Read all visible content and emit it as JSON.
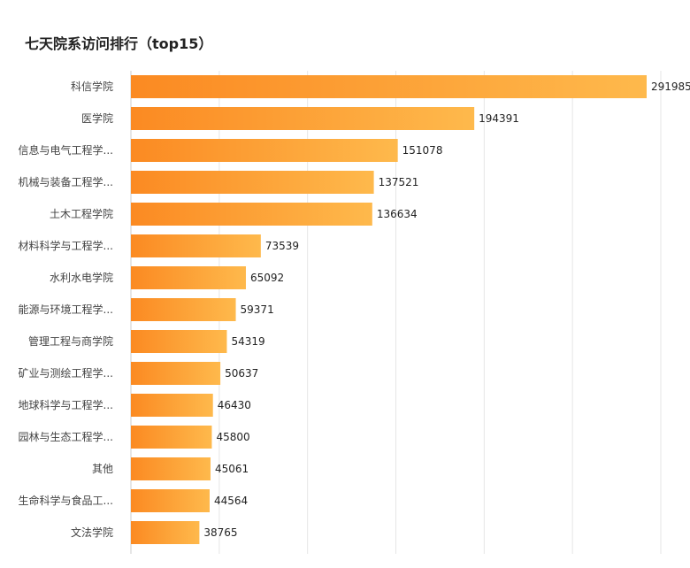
{
  "chart_data": {
    "type": "bar",
    "orientation": "horizontal",
    "title": "七天院系访问排行（top15）",
    "categories": [
      "科信学院",
      "医学院",
      "信息与电气工程学...",
      "机械与装备工程学...",
      "土木工程学院",
      "材料科学与工程学...",
      "水利水电学院",
      "能源与环境工程学...",
      "管理工程与商学院",
      "矿业与测绘工程学...",
      "地球科学与工程学...",
      "园林与生态工程学...",
      "其他",
      "生命科学与食品工...",
      "文法学院"
    ],
    "values": [
      291985,
      194391,
      151078,
      137521,
      136634,
      73539,
      65092,
      59371,
      54319,
      50637,
      46430,
      45800,
      45061,
      44564,
      38765
    ],
    "xlim": [
      0,
      300000
    ],
    "grid": true,
    "data_labels": true
  },
  "colors": {
    "bar_start": "#fb8a22",
    "bar_end": "#feb94c",
    "grid": "#e6e6e6",
    "axis": "#cccccc"
  }
}
